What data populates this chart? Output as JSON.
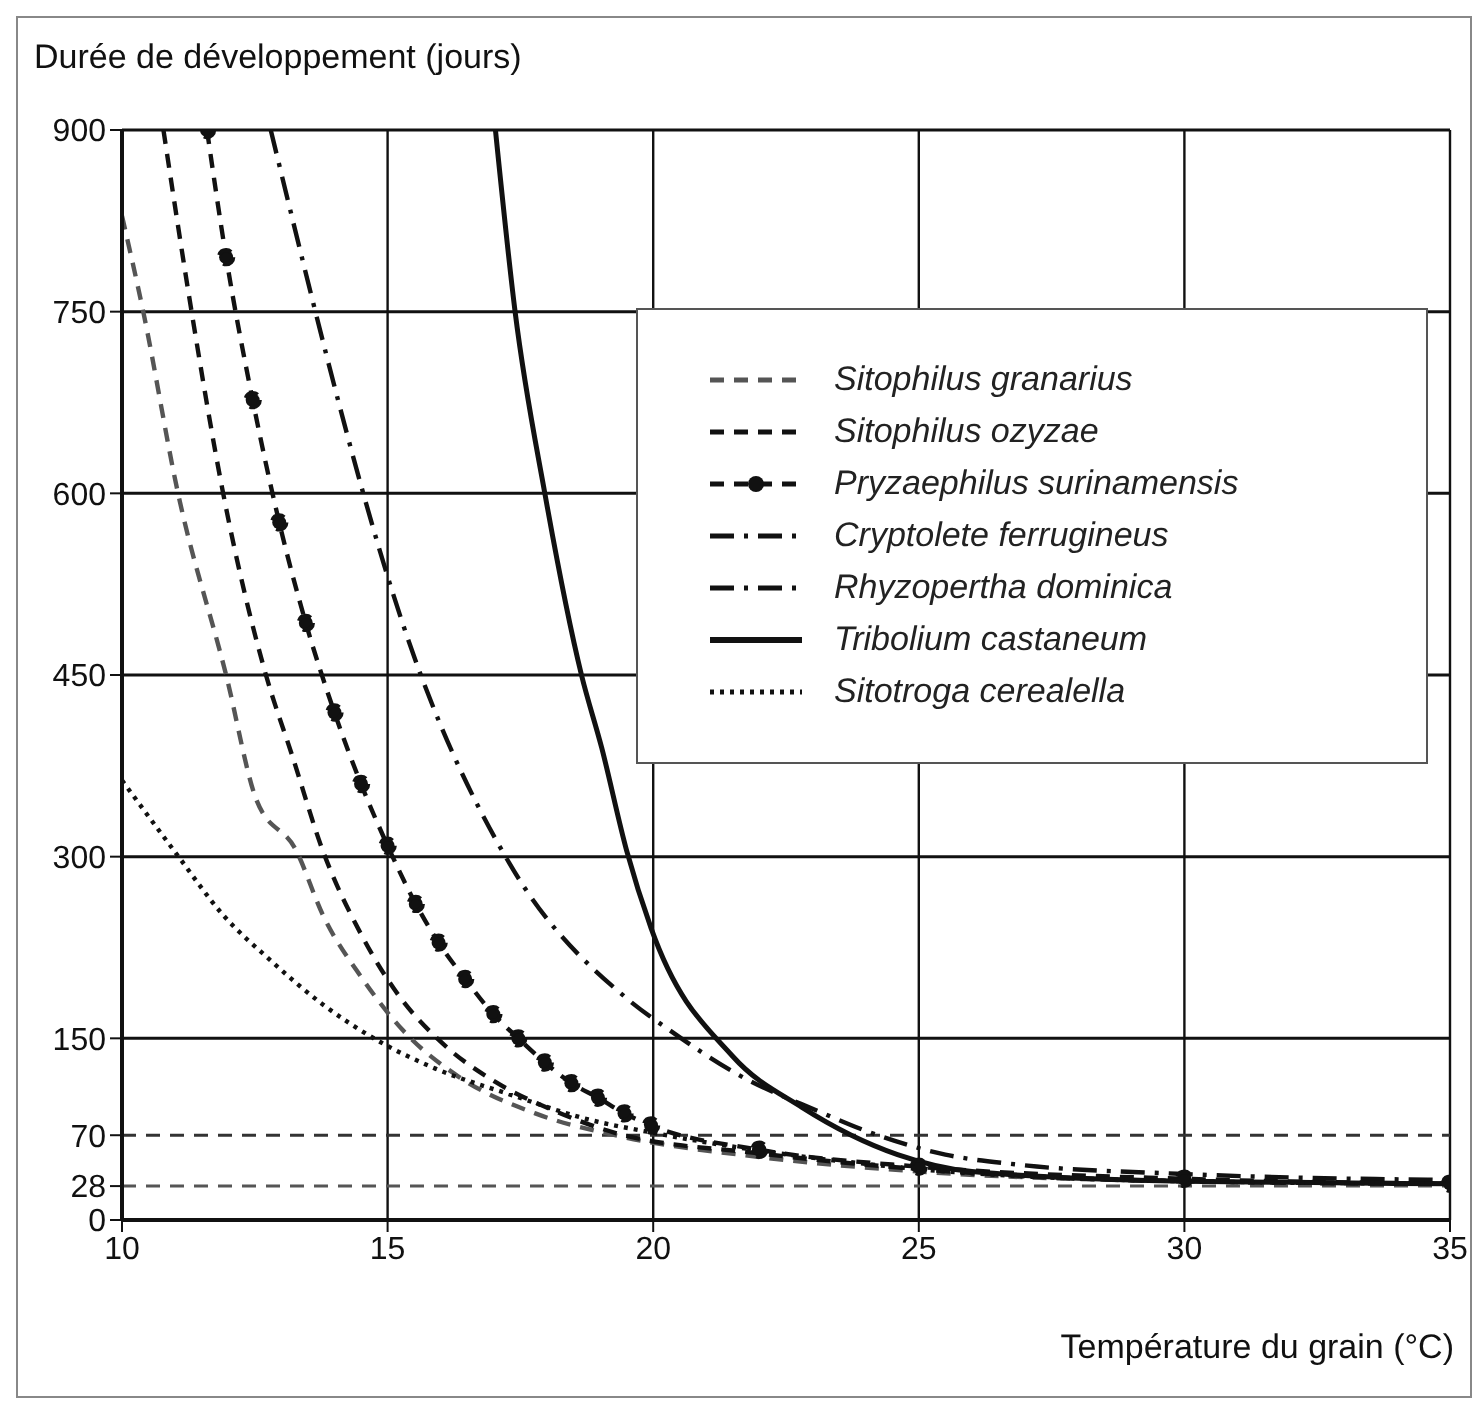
{
  "chart_data": {
    "type": "line",
    "ylabel": "Durée de développement (jours)",
    "xlabel": "Température du grain (°C)",
    "xlim": [
      10,
      35
    ],
    "xticks": [
      10,
      15,
      20,
      25,
      30,
      35
    ],
    "ylim": [
      0,
      900
    ],
    "yticks": [
      0,
      28,
      70,
      150,
      300,
      450,
      600,
      750,
      900
    ],
    "grid": true,
    "legend": "top right",
    "ref_lines": [
      {
        "axis": "y",
        "value": 70,
        "color": "#333333",
        "line_style": "dashed"
      },
      {
        "axis": "y",
        "value": 28,
        "color": "#555555",
        "line_style": "dashed"
      }
    ],
    "series": [
      {
        "name": "Sitophilus granarius",
        "color": "#555555",
        "line_style": "dashed",
        "x": [
          10,
          10.4,
          11.05,
          11.96,
          12.53,
          13.28,
          13.78,
          14.53,
          15.28,
          16.28,
          17.78,
          19.28,
          22,
          25,
          30,
          35
        ],
        "values": [
          829,
          750,
          601,
          450,
          347,
          305,
          252,
          199,
          157,
          120,
          88,
          70,
          52,
          40,
          32,
          30
        ]
      },
      {
        "name": "Sitophilus ozyzae",
        "color": "#111111",
        "line_style": "dashed",
        "x": [
          10.78,
          11.31,
          11.9,
          12.71,
          13.2,
          13.78,
          14.5,
          15.15,
          16.03,
          17.03,
          18.15,
          19.28,
          22,
          25,
          30,
          35
        ],
        "values": [
          900,
          750,
          601,
          450,
          384,
          305,
          236,
          189,
          146,
          114,
          90,
          72,
          55,
          42,
          32,
          30
        ]
      },
      {
        "name": "Pryzaephilus surinamensis",
        "color": "#111111",
        "line_style": "dashed",
        "marker": "circle",
        "x": [
          11.6,
          11.96,
          12.46,
          12.96,
          13.46,
          14,
          14.5,
          15,
          15.53,
          15.96,
          16.46,
          16.99,
          17.46,
          17.96,
          18.46,
          18.96,
          19.46,
          19.96,
          22,
          25,
          30,
          35
        ],
        "values": [
          900,
          795,
          677,
          576,
          493,
          419,
          360,
          309,
          261,
          229,
          199,
          170,
          150,
          130,
          113,
          101,
          88,
          78,
          58,
          44,
          34,
          30
        ]
      },
      {
        "name": "Cryptolete ferrugineus",
        "color": "#111111",
        "line_style": "dashdot",
        "x": [
          12.8,
          15.6,
          17.3,
          19.5,
          20.3,
          21.6,
          23.1,
          24.1,
          25.5,
          26.8,
          30,
          35
        ],
        "values": [
          900,
          453,
          294,
          183,
          157,
          120,
          90,
          72,
          54,
          46,
          38,
          33
        ]
      },
      {
        "name": "Rhyzopertha dominica",
        "color": "#111111",
        "line_style": "dashdot"
      },
      {
        "name": "Tribolium castaneum",
        "color": "#111111",
        "line_style": "solid",
        "x": [
          17.03,
          17.4,
          17.96,
          18.65,
          19.03,
          19.5,
          19.96,
          21.5,
          22.8,
          24.6,
          26,
          30,
          35
        ],
        "values": [
          900,
          750,
          600,
          450,
          390,
          305,
          241,
          135,
          93,
          54,
          40,
          32,
          30
        ]
      },
      {
        "name": "Sitotroga cerealella",
        "color": "#111111",
        "line_style": "dotted",
        "x": [
          10,
          11.03,
          11.9,
          12.78,
          13.78,
          14.78,
          15.9,
          17.28,
          18.78,
          20,
          25,
          30,
          35
        ],
        "values": [
          363,
          302,
          252,
          215,
          178,
          149,
          125,
          104,
          83,
          72,
          42,
          32,
          30
        ]
      }
    ]
  }
}
